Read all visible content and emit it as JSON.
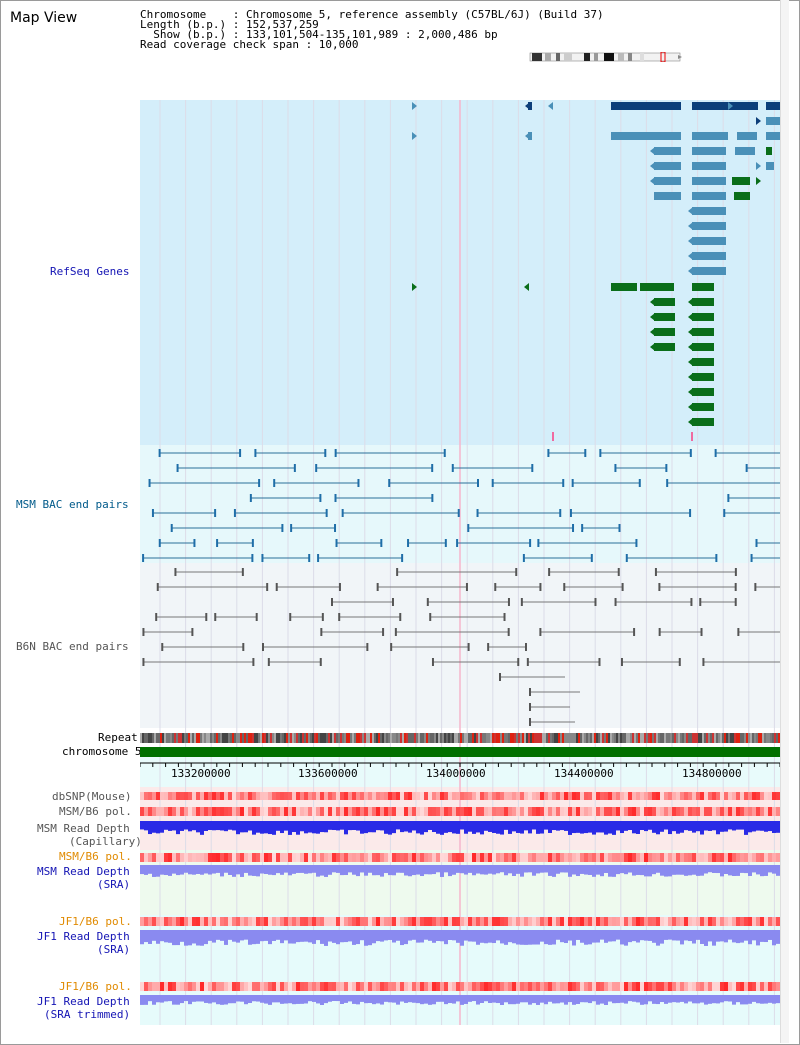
{
  "title": "Map View",
  "info": {
    "line1": "Chromosome    : Chromosome 5, reference assembly (C57BL/6J) (Build 37)",
    "line2": "Length (b.p.) : 152,537,259",
    "line3": "  Show (b.p.) : 133,101,504-135,101,989 : 2,000,486 bp",
    "line4": "Read coverage check span : 10,000"
  },
  "tracks": {
    "refseq": "RefSeq Genes",
    "msm_bac": "MSM BAC end pairs",
    "b6n_bac": "B6N BAC end pairs",
    "repeat": "Repeat",
    "chrom": "chromosome 5",
    "dbsnp": "dbSNP(Mouse)",
    "msm_b6_pol": "MSM/B6 pol.",
    "msm_depth_cap_1": "MSM Read Depth",
    "msm_depth_cap_2": "(Capillary)",
    "msm_b6_pol2": "MSM/B6 pol.",
    "msm_depth_sra_1": "MSM Read Depth",
    "msm_depth_sra_2": "(SRA)",
    "jf1_b6_pol": "JF1/B6 pol.",
    "jf1_depth_sra_1": "JF1 Read Depth",
    "jf1_depth_sra_2": "(SRA)",
    "jf1_b6_pol2": "JF1/B6 pol.",
    "jf1_depth_trim_1": "JF1 Read Depth",
    "jf1_depth_trim_2": "(SRA trimmed)"
  },
  "axis": {
    "ticks": [
      "133200000",
      "133600000",
      "134000000",
      "134400000",
      "134800000"
    ]
  },
  "colors": {
    "refseq_bg": "#d4eefa",
    "bac_bg": "#e6f8fb",
    "b6n_bg": "#f1f5f8",
    "gene_dark": "#0c3f7a",
    "gene_mid": "#4a90b8",
    "gene_green": "#0a6e1a",
    "chrom_green": "#007000",
    "depth_blue": "#2a2ae6",
    "depth_light": "#8a8af0"
  }
}
